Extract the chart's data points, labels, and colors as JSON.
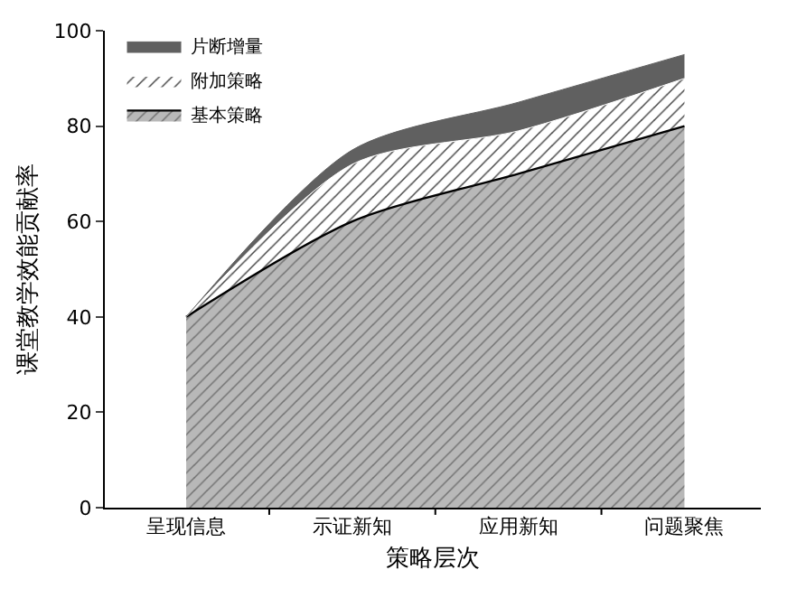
{
  "chart_data": {
    "type": "area",
    "stacked": true,
    "xlabel": "策略层次",
    "ylabel": "课堂教学效能贡献率",
    "categories": [
      "呈现信息",
      "示证新知",
      "应用新知",
      "问题聚焦"
    ],
    "series": [
      {
        "name": "基本策略",
        "color": "#b8b8b8",
        "values": [
          40,
          60,
          70,
          80
        ]
      },
      {
        "name": "附加策略",
        "color": "#ffffff",
        "values": [
          0,
          12,
          9,
          10
        ]
      },
      {
        "name": "片断增量",
        "color": "#606060",
        "values": [
          0,
          3,
          6,
          5
        ]
      }
    ],
    "ylim": [
      0,
      100
    ],
    "yticks": [
      0,
      20,
      40,
      60,
      80,
      100
    ],
    "grid": false,
    "legend": "top left"
  }
}
